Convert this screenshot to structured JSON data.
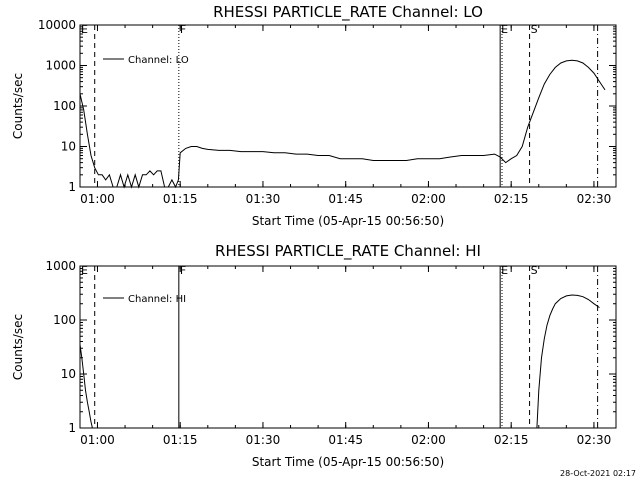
{
  "chart_data": [
    {
      "type": "line",
      "title": "RHESSI PARTICLE_RATE Channel: LO",
      "xlabel": "Start Time (05-Apr-15 00:56:50)",
      "ylabel": "Counts/sec",
      "xlim": [
        "00:56:50",
        "02:34:00"
      ],
      "ylim": [
        1,
        10000
      ],
      "yscale": "log",
      "yticks": [
        "1",
        "10",
        "100",
        "1000",
        "10000"
      ],
      "xticks": [
        "01:00",
        "01:15",
        "01:30",
        "01:45",
        "02:00",
        "02:15",
        "02:30"
      ],
      "legend": "Channel: LO",
      "legend_position": "top-left",
      "flags": [
        {
          "label": "E",
          "time": "00:56:50",
          "style": "solid"
        },
        {
          "label": "",
          "time": "00:59:30",
          "style": "dashed"
        },
        {
          "label": "F",
          "time": "01:14:45",
          "style": "dotted"
        },
        {
          "label": "E",
          "time": "02:13:00",
          "style": "solid"
        },
        {
          "label": "",
          "time": "02:13:20",
          "style": "dotted"
        },
        {
          "label": "S",
          "time": "02:18:20",
          "style": "dashed"
        },
        {
          "label": "",
          "time": "02:30:40",
          "style": "dashdot"
        }
      ],
      "series": [
        {
          "name": "Channel: LO",
          "x": [
            "00:56:50",
            "00:57:30",
            "00:58:10",
            "00:58:50",
            "00:59:30",
            "01:00:10",
            "01:00:50",
            "01:01:30",
            "01:02:10",
            "01:02:50",
            "01:03:30",
            "01:04:10",
            "01:04:50",
            "01:05:30",
            "01:06:10",
            "01:06:50",
            "01:07:30",
            "01:08:10",
            "01:08:50",
            "01:09:30",
            "01:10:10",
            "01:10:50",
            "01:11:30",
            "01:12:10",
            "01:12:50",
            "01:13:30",
            "01:14:10",
            "01:14:40",
            "01:15:00",
            "01:16:00",
            "01:17:00",
            "01:18:00",
            "01:19:00",
            "01:20:00",
            "01:22:00",
            "01:24:00",
            "01:26:00",
            "01:28:00",
            "01:30:00",
            "01:32:00",
            "01:34:00",
            "01:36:00",
            "01:38:00",
            "01:40:00",
            "01:42:00",
            "01:44:00",
            "01:46:00",
            "01:48:00",
            "01:50:00",
            "01:52:00",
            "01:54:00",
            "01:56:00",
            "01:58:00",
            "02:00:00",
            "02:02:00",
            "02:04:00",
            "02:06:00",
            "02:08:00",
            "02:10:00",
            "02:12:00",
            "02:13:00",
            "02:14:00",
            "02:15:00",
            "02:16:00",
            "02:17:00",
            "02:18:00",
            "02:19:00",
            "02:20:00",
            "02:21:00",
            "02:22:00",
            "02:23:00",
            "02:24:00",
            "02:25:00",
            "02:26:00",
            "02:27:00",
            "02:28:00",
            "02:29:00",
            "02:30:00",
            "02:31:00",
            "02:32:00"
          ],
          "values": [
            200,
            80,
            20,
            6,
            3,
            2,
            2,
            1.5,
            2,
            1,
            1,
            2,
            1,
            2,
            1,
            2,
            1,
            2,
            2,
            2.5,
            2,
            2.5,
            2.5,
            1,
            1,
            1.5,
            1,
            1.5,
            7,
            9,
            10,
            10,
            9,
            8.5,
            8,
            8,
            7.5,
            7.5,
            7.5,
            7,
            7,
            6.5,
            6.5,
            6,
            6,
            5,
            5,
            5,
            4.5,
            4.5,
            4.5,
            4.5,
            5,
            5,
            5,
            5.5,
            6,
            6,
            6,
            6.5,
            5.5,
            4,
            5,
            6,
            10,
            30,
            70,
            160,
            350,
            600,
            900,
            1150,
            1300,
            1350,
            1300,
            1150,
            900,
            650,
            400,
            250
          ]
        }
      ]
    },
    {
      "type": "line",
      "title": "RHESSI PARTICLE_RATE Channel: HI",
      "xlabel": "Start Time (05-Apr-15 00:56:50)",
      "ylabel": "Counts/sec",
      "xlim": [
        "00:56:50",
        "02:34:00"
      ],
      "ylim": [
        1,
        1000
      ],
      "yscale": "log",
      "yticks": [
        "1",
        "10",
        "100",
        "1000"
      ],
      "xticks": [
        "01:00",
        "01:15",
        "01:30",
        "01:45",
        "02:00",
        "02:15",
        "02:30"
      ],
      "legend": "Channel: HI",
      "legend_position": "top-left",
      "flags": [
        {
          "label": "E",
          "time": "00:56:50",
          "style": "solid"
        },
        {
          "label": "",
          "time": "00:59:30",
          "style": "dashed"
        },
        {
          "label": "F",
          "time": "01:14:45",
          "style": "solid"
        },
        {
          "label": "E",
          "time": "02:13:00",
          "style": "solid"
        },
        {
          "label": "",
          "time": "02:13:20",
          "style": "dotted"
        },
        {
          "label": "S",
          "time": "02:18:20",
          "style": "dashed"
        },
        {
          "label": "",
          "time": "02:30:40",
          "style": "dashdot"
        }
      ],
      "series": [
        {
          "name": "Channel: HI",
          "x": [
            "00:56:50",
            "00:57:10",
            "00:57:30",
            "00:57:50",
            "00:58:10",
            "00:58:30",
            "00:58:50",
            "00:59:05",
            "02:19:40",
            "02:20:00",
            "02:20:30",
            "02:21:00",
            "02:21:30",
            "02:22:00",
            "02:22:30",
            "02:23:00",
            "02:24:00",
            "02:25:00",
            "02:26:00",
            "02:27:00",
            "02:28:00",
            "02:29:00",
            "02:30:00",
            "02:31:00"
          ],
          "values": [
            35,
            20,
            10,
            5,
            3,
            2,
            1.3,
            1,
            1,
            5,
            20,
            45,
            80,
            120,
            160,
            200,
            250,
            280,
            290,
            285,
            270,
            240,
            200,
            170
          ]
        }
      ]
    }
  ],
  "flag_labels": [
    "E",
    "F",
    "E",
    "S"
  ],
  "timestamp": "28-Oct-2021 02:17"
}
